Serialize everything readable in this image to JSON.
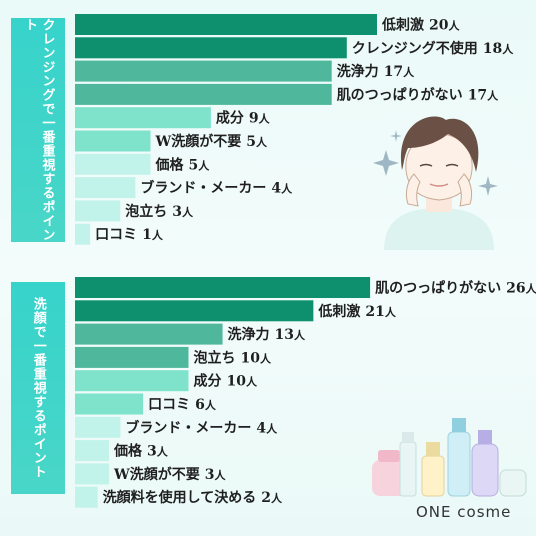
{
  "brand": "ONE cosme",
  "colors": {
    "bar_dark": "#0e8f6e",
    "bar_mid": "#4fb89c",
    "bar_light": "#7fe3cc",
    "bar_pale": "#c2f3ea",
    "label_bg": "#3fd4c9"
  },
  "unit_label": "人",
  "chart_data": [
    {
      "type": "bar",
      "orientation": "horizontal",
      "title": "クレンジングで一番重視するポイント",
      "categories": [
        "低刺激",
        "クレンジング不使用",
        "洗浄力",
        "肌のつっぱりがない",
        "成分",
        "W洗顔が不要",
        "価格",
        "ブランド・メーカー",
        "泡立ち",
        "口コミ"
      ],
      "values": [
        20,
        18,
        17,
        17,
        9,
        5,
        5,
        4,
        3,
        1
      ],
      "unit": "人"
    },
    {
      "type": "bar",
      "orientation": "horizontal",
      "title": "洗顔で一番重視するポイント",
      "categories": [
        "肌のつっぱりがない",
        "低刺激",
        "洗浄力",
        "泡立ち",
        "成分",
        "口コミ",
        "ブランド・メーカー",
        "価格",
        "W洗顔が不要",
        "洗顔料を使用して決める"
      ],
      "values": [
        26,
        21,
        13,
        10,
        10,
        6,
        4,
        3,
        3,
        2
      ],
      "unit": "人"
    }
  ]
}
